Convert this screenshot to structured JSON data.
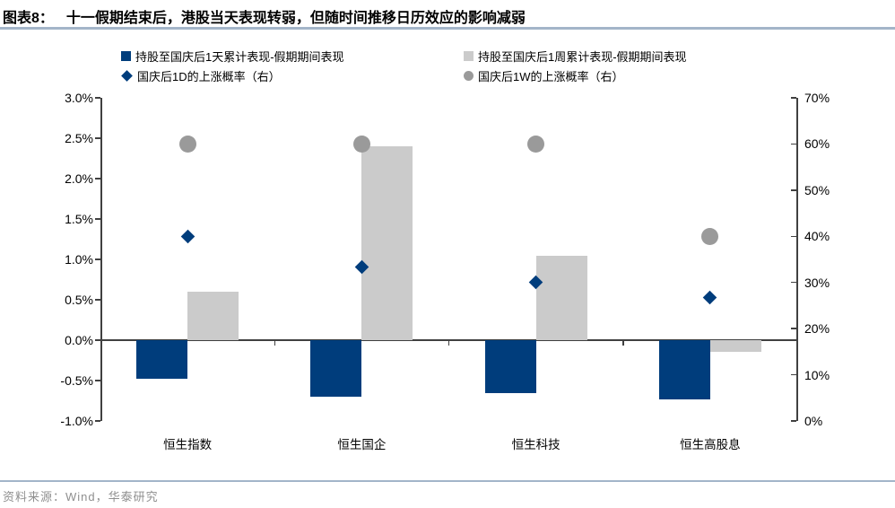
{
  "title": {
    "prefix": "图表8：",
    "text": "十一假期结束后，港股当天表现转弱，但随时间推移日历效应的影响减弱"
  },
  "footer": {
    "source": "资料来源：Wind，华泰研究"
  },
  "colors": {
    "navy": "#003d7c",
    "bar_gray": "#cbcbcb",
    "marker_gray": "#9a9a9a",
    "axis": "#404040",
    "separator": "#a3b5c9",
    "footer_text": "#8f8f8f"
  },
  "chart_data": {
    "type": "bar",
    "title": "图表8：十一假期结束后，港股当天表现转弱，但随时间推移日历效应的影响减弱",
    "categories": [
      "恒生指数",
      "恒生国企",
      "恒生科技",
      "恒生高股息"
    ],
    "series": [
      {
        "name": "持股至国庆后1天累计表现-假期期间表现",
        "type": "bar",
        "axis": "left",
        "color_key": "navy",
        "values": [
          -0.48,
          -0.7,
          -0.65,
          -0.73
        ]
      },
      {
        "name": "持股至国庆后1周累计表现-假期期间表现",
        "type": "bar",
        "axis": "left",
        "color_key": "bar_gray",
        "values": [
          0.6,
          2.4,
          1.05,
          -0.14
        ]
      },
      {
        "name": "国庆后1D的上涨概率（右）",
        "type": "scatter-diamond",
        "axis": "right",
        "color_key": "navy",
        "values": [
          40,
          33.3,
          30,
          26.7
        ]
      },
      {
        "name": "国庆后1W的上涨概率（右）",
        "type": "scatter-circle",
        "axis": "right",
        "color_key": "marker_gray",
        "values": [
          60,
          60,
          60,
          40
        ]
      }
    ],
    "left_axis": {
      "min": -1,
      "max": 3,
      "ticks": [
        "3.0%",
        "2.5%",
        "2.0%",
        "1.5%",
        "1.0%",
        "0.5%",
        "0.0%",
        "-0.5%",
        "-1.0%"
      ]
    },
    "right_axis": {
      "min": 0,
      "max": 70,
      "ticks": [
        "70%",
        "60%",
        "50%",
        "40%",
        "30%",
        "20%",
        "10%",
        "0%"
      ]
    },
    "legend_position": "top",
    "grid": false
  }
}
